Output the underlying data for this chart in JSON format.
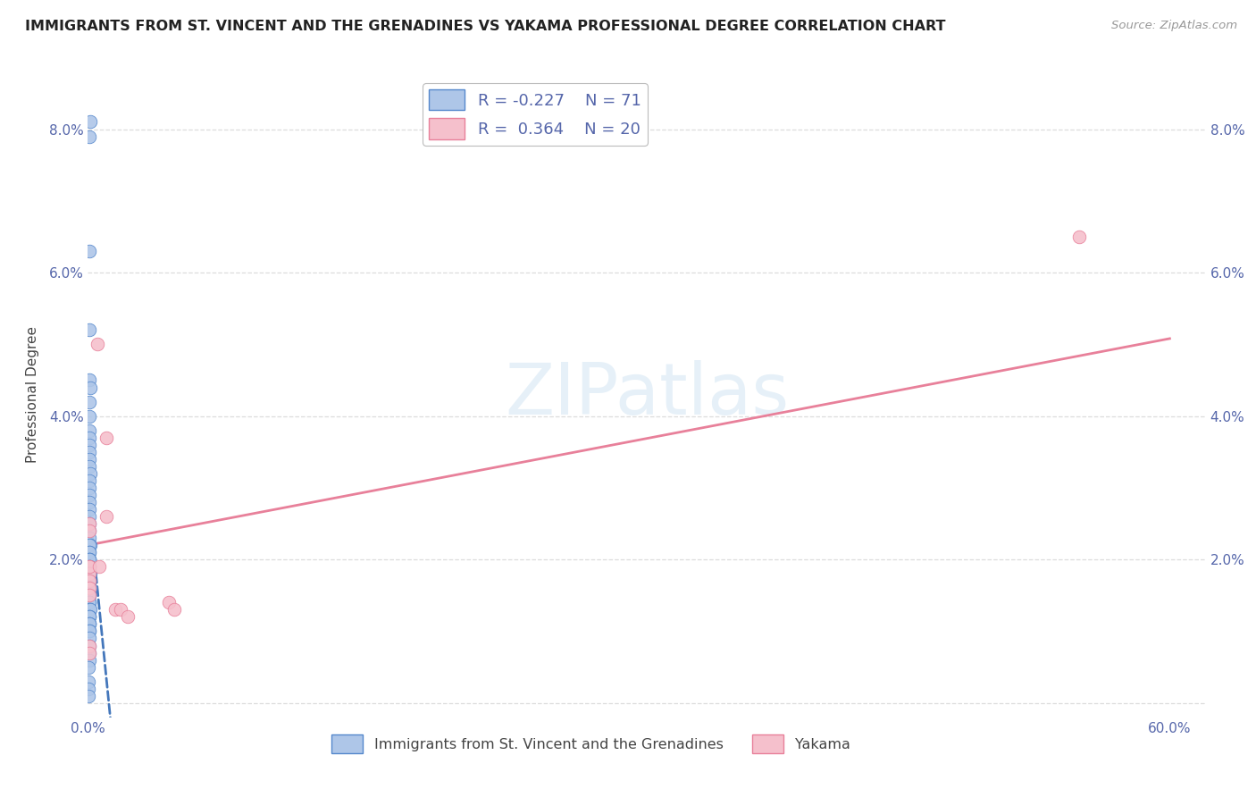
{
  "title": "IMMIGRANTS FROM ST. VINCENT AND THE GRENADINES VS YAKAMA PROFESSIONAL DEGREE CORRELATION CHART",
  "source": "Source: ZipAtlas.com",
  "ylabel": "Professional Degree",
  "blue_R": -0.227,
  "blue_N": 71,
  "pink_R": 0.364,
  "pink_N": 20,
  "xlim": [
    0.0,
    0.62
  ],
  "ylim": [
    -0.002,
    0.088
  ],
  "plot_xlim": [
    0.0,
    0.62
  ],
  "plot_ylim": [
    0.0,
    0.088
  ],
  "xtick_positions": [
    0.0,
    0.1,
    0.2,
    0.3,
    0.4,
    0.5,
    0.6
  ],
  "xtick_labels": [
    "0.0%",
    "",
    "",
    "",
    "",
    "",
    "60.0%"
  ],
  "ytick_positions": [
    0.0,
    0.02,
    0.04,
    0.06,
    0.08
  ],
  "ytick_labels": [
    "",
    "2.0%",
    "4.0%",
    "6.0%",
    "8.0%"
  ],
  "blue_color": "#aec6e8",
  "blue_edge_color": "#5588cc",
  "blue_line_color": "#4477bb",
  "pink_color": "#f5c0cc",
  "pink_edge_color": "#e8809a",
  "pink_line_color": "#e8809a",
  "grid_color": "#dddddd",
  "background_color": "#ffffff",
  "watermark_color": "#ccddeeff",
  "title_color": "#222222",
  "source_color": "#999999",
  "tick_color": "#5566aa",
  "ylabel_color": "#444444",
  "legend_blue_label": "Immigrants from St. Vincent and the Grenadines",
  "legend_pink_label": "Yakama",
  "blue_line_intercept": 0.029,
  "blue_line_slope": -2.5,
  "pink_line_intercept": 0.022,
  "pink_line_slope": 0.048,
  "blue_x": [
    0.0012,
    0.0008,
    0.001,
    0.0008,
    0.0009,
    0.0011,
    0.001,
    0.0009,
    0.0008,
    0.001,
    0.0009,
    0.0008,
    0.001,
    0.0009,
    0.0011,
    0.0008,
    0.001,
    0.0009,
    0.0008,
    0.001,
    0.0009,
    0.0008,
    0.001,
    0.0009,
    0.0011,
    0.0008,
    0.001,
    0.0009,
    0.0008,
    0.001,
    0.0009,
    0.0008,
    0.001,
    0.0009,
    0.0011,
    0.0008,
    0.001,
    0.0009,
    0.0008,
    0.001,
    0.0009,
    0.0008,
    0.001,
    0.0009,
    0.0011,
    0.0008,
    0.001,
    0.0009,
    0.0008,
    0.001,
    0.0009,
    0.0008,
    0.001,
    0.0009,
    0.0011,
    0.0008,
    0.001,
    0.0009,
    0.0008,
    0.001,
    0.0009,
    0.0008,
    0.0006,
    0.0007,
    0.0006,
    0.0007,
    0.0006,
    0.0005,
    0.0004,
    0.0003,
    0.0002
  ],
  "blue_y": [
    0.081,
    0.079,
    0.063,
    0.052,
    0.045,
    0.044,
    0.042,
    0.04,
    0.038,
    0.037,
    0.036,
    0.035,
    0.034,
    0.033,
    0.032,
    0.031,
    0.03,
    0.029,
    0.028,
    0.027,
    0.026,
    0.025,
    0.024,
    0.023,
    0.022,
    0.022,
    0.021,
    0.021,
    0.02,
    0.02,
    0.02,
    0.019,
    0.019,
    0.019,
    0.018,
    0.018,
    0.018,
    0.018,
    0.017,
    0.017,
    0.017,
    0.017,
    0.016,
    0.016,
    0.016,
    0.015,
    0.015,
    0.015,
    0.015,
    0.014,
    0.014,
    0.014,
    0.013,
    0.013,
    0.013,
    0.012,
    0.012,
    0.012,
    0.011,
    0.011,
    0.011,
    0.01,
    0.01,
    0.009,
    0.008,
    0.007,
    0.006,
    0.005,
    0.003,
    0.002,
    0.001
  ],
  "pink_x": [
    0.0008,
    0.0009,
    0.001,
    0.0008,
    0.0009,
    0.001,
    0.0008,
    0.0009,
    0.001,
    0.0008,
    0.005,
    0.006,
    0.01,
    0.015,
    0.018,
    0.022,
    0.045,
    0.048,
    0.01,
    0.55
  ],
  "pink_y": [
    0.019,
    0.018,
    0.017,
    0.016,
    0.025,
    0.024,
    0.008,
    0.007,
    0.019,
    0.015,
    0.05,
    0.019,
    0.026,
    0.013,
    0.013,
    0.012,
    0.014,
    0.013,
    0.037,
    0.065
  ]
}
